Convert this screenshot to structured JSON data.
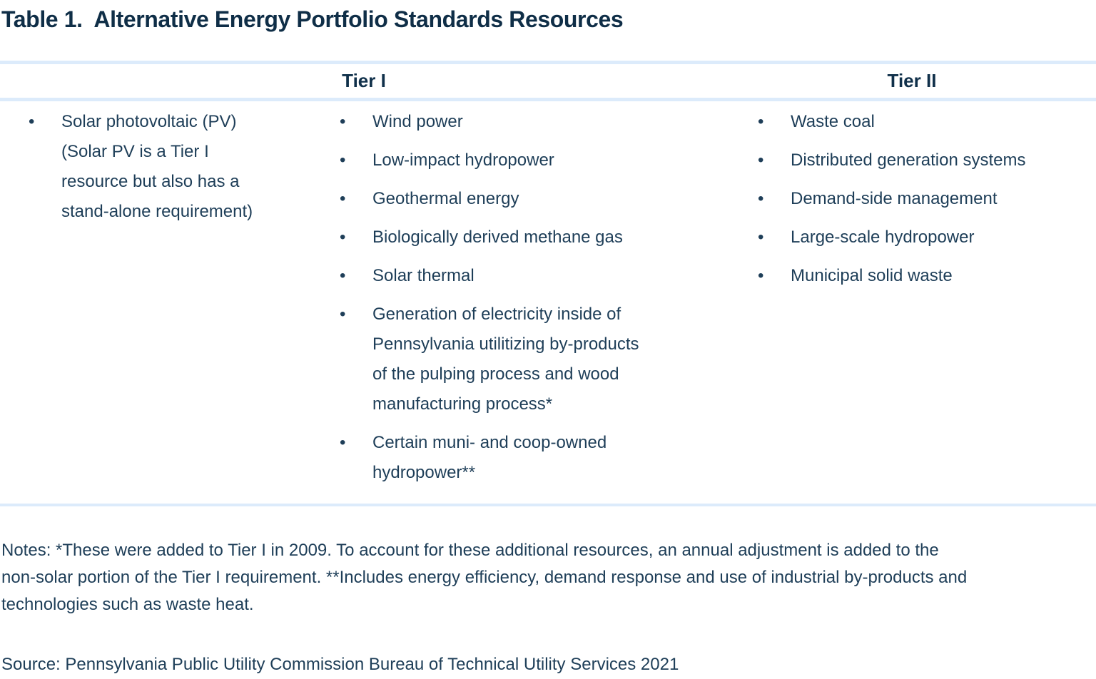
{
  "title": "Table 1.  Alternative Energy Portfolio Standards Resources",
  "bullet_char": "•",
  "table": {
    "headers": [
      {
        "label": "Tier I"
      },
      {
        "label": "Tier II"
      }
    ],
    "columns": [
      {
        "name": "tier1-solar-carveout",
        "items": [
          "Solar photovoltaic (PV)\n(Solar PV is a Tier I\nresource but also has a\nstand-alone requirement)"
        ]
      },
      {
        "name": "tier1-resources",
        "items": [
          "Wind power",
          "Low-impact hydropower",
          "Geothermal energy",
          "Biologically derived methane gas",
          "Solar thermal",
          "Generation of electricity inside of\nPennsylvania utilitizing by-products\nof the pulping process and wood\nmanufacturing process*",
          "Certain muni- and coop-owned\nhydropower**"
        ]
      },
      {
        "name": "tier2-resources",
        "items": [
          "Waste coal",
          "Distributed generation systems",
          "Demand-side management",
          "Large-scale hydropower",
          "Municipal solid waste"
        ]
      }
    ]
  },
  "notes": "Notes: *These were added to Tier I in 2009. To account for these additional resources, an annual adjustment is added to the\nnon-solar portion of the Tier I requirement. **Includes energy efficiency, demand response and use of industrial by-products and\ntechnologies such as waste heat.",
  "source": "Source: Pennsylvania Public Utility Commission Bureau of Technical Utility Services 2021",
  "colors": {
    "heading_text": "#10304a",
    "body_text": "#1e3e58",
    "rule": "#dcebfb",
    "background": "#ffffff"
  }
}
